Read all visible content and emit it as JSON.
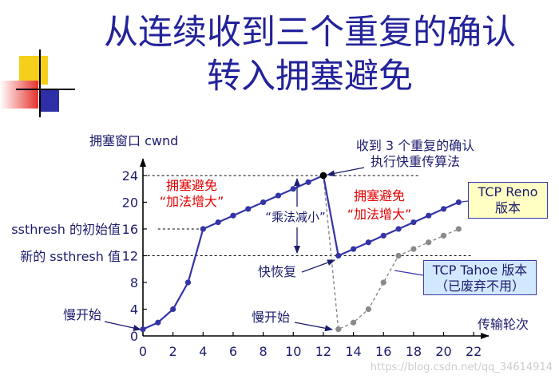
{
  "title": {
    "line1": "从连续收到三个重复的确认",
    "line2": "转入拥塞避免"
  },
  "colors": {
    "title": "#23239b",
    "text": "#1c1c6e",
    "highlight": "#e60000",
    "axis": "#000000",
    "reno_box_fill": "#ffffc4",
    "tahoe_box_fill": "#d2e8ff",
    "box_border": "#3a3aaa",
    "decor_yellow": "#f4cf1c",
    "decor_red": "#e6322c",
    "decor_blue": "#2e2ea6",
    "watermark": "#cccccc"
  },
  "chart_data": {
    "type": "line",
    "xlabel": "传输轮次",
    "ylabel": "拥塞窗口 cwnd",
    "xlim": [
      0,
      23
    ],
    "ylim": [
      0,
      26.5
    ],
    "xticks": [
      0,
      2,
      4,
      6,
      8,
      10,
      12,
      14,
      16,
      18,
      20,
      22
    ],
    "yticks": [
      0,
      4,
      8,
      12,
      16,
      20,
      24
    ],
    "grid": false,
    "series": [
      {
        "legend": [
          "TCP Reno",
          "版本"
        ],
        "x": [
          0,
          1,
          2,
          3,
          4,
          5,
          6,
          7,
          8,
          9,
          10,
          11,
          12,
          13,
          14,
          15,
          16,
          17,
          18,
          19,
          20,
          21
        ],
        "y": [
          1,
          2,
          4,
          8,
          16,
          17,
          18,
          19,
          20,
          21,
          22,
          23,
          24,
          12,
          13,
          14,
          15,
          16,
          17,
          18,
          19,
          20
        ],
        "color": "#3434a8",
        "line_style": "solid"
      },
      {
        "legend": [
          "TCP Tahoe 版本",
          "（已废弃不用）"
        ],
        "x": [
          12,
          13,
          14,
          15,
          16,
          17,
          18,
          19,
          20,
          21
        ],
        "y": [
          24,
          1,
          2,
          4,
          8,
          12,
          13,
          14,
          15,
          16
        ],
        "color": "#8a8a8a",
        "line_style": "dashed"
      }
    ],
    "event_point": {
      "x": 12,
      "y": 24,
      "color": "#000000"
    },
    "reference_lines_y": [
      24,
      16,
      12
    ],
    "annotations": {
      "ssthresh_initial": "ssthresh 的初始值",
      "ssthresh_new": "新的 ssthresh 值",
      "slow_start_1": "慢开始",
      "slow_start_2": "慢开始",
      "congestion_avoidance_1": {
        "line1": "拥塞避免",
        "line2": "“加法增大”"
      },
      "congestion_avoidance_2": {
        "line1": "拥塞避免",
        "line2": "“加法增大”"
      },
      "multiplicative_decrease": "“乘法减小”",
      "fast_recovery": "快恢复",
      "triple_dup_ack": {
        "line1": "收到 3 个重复的确认",
        "line2": "执行快重传算法"
      }
    }
  },
  "watermark": "https://blog.csdn.net/qq_34614914"
}
